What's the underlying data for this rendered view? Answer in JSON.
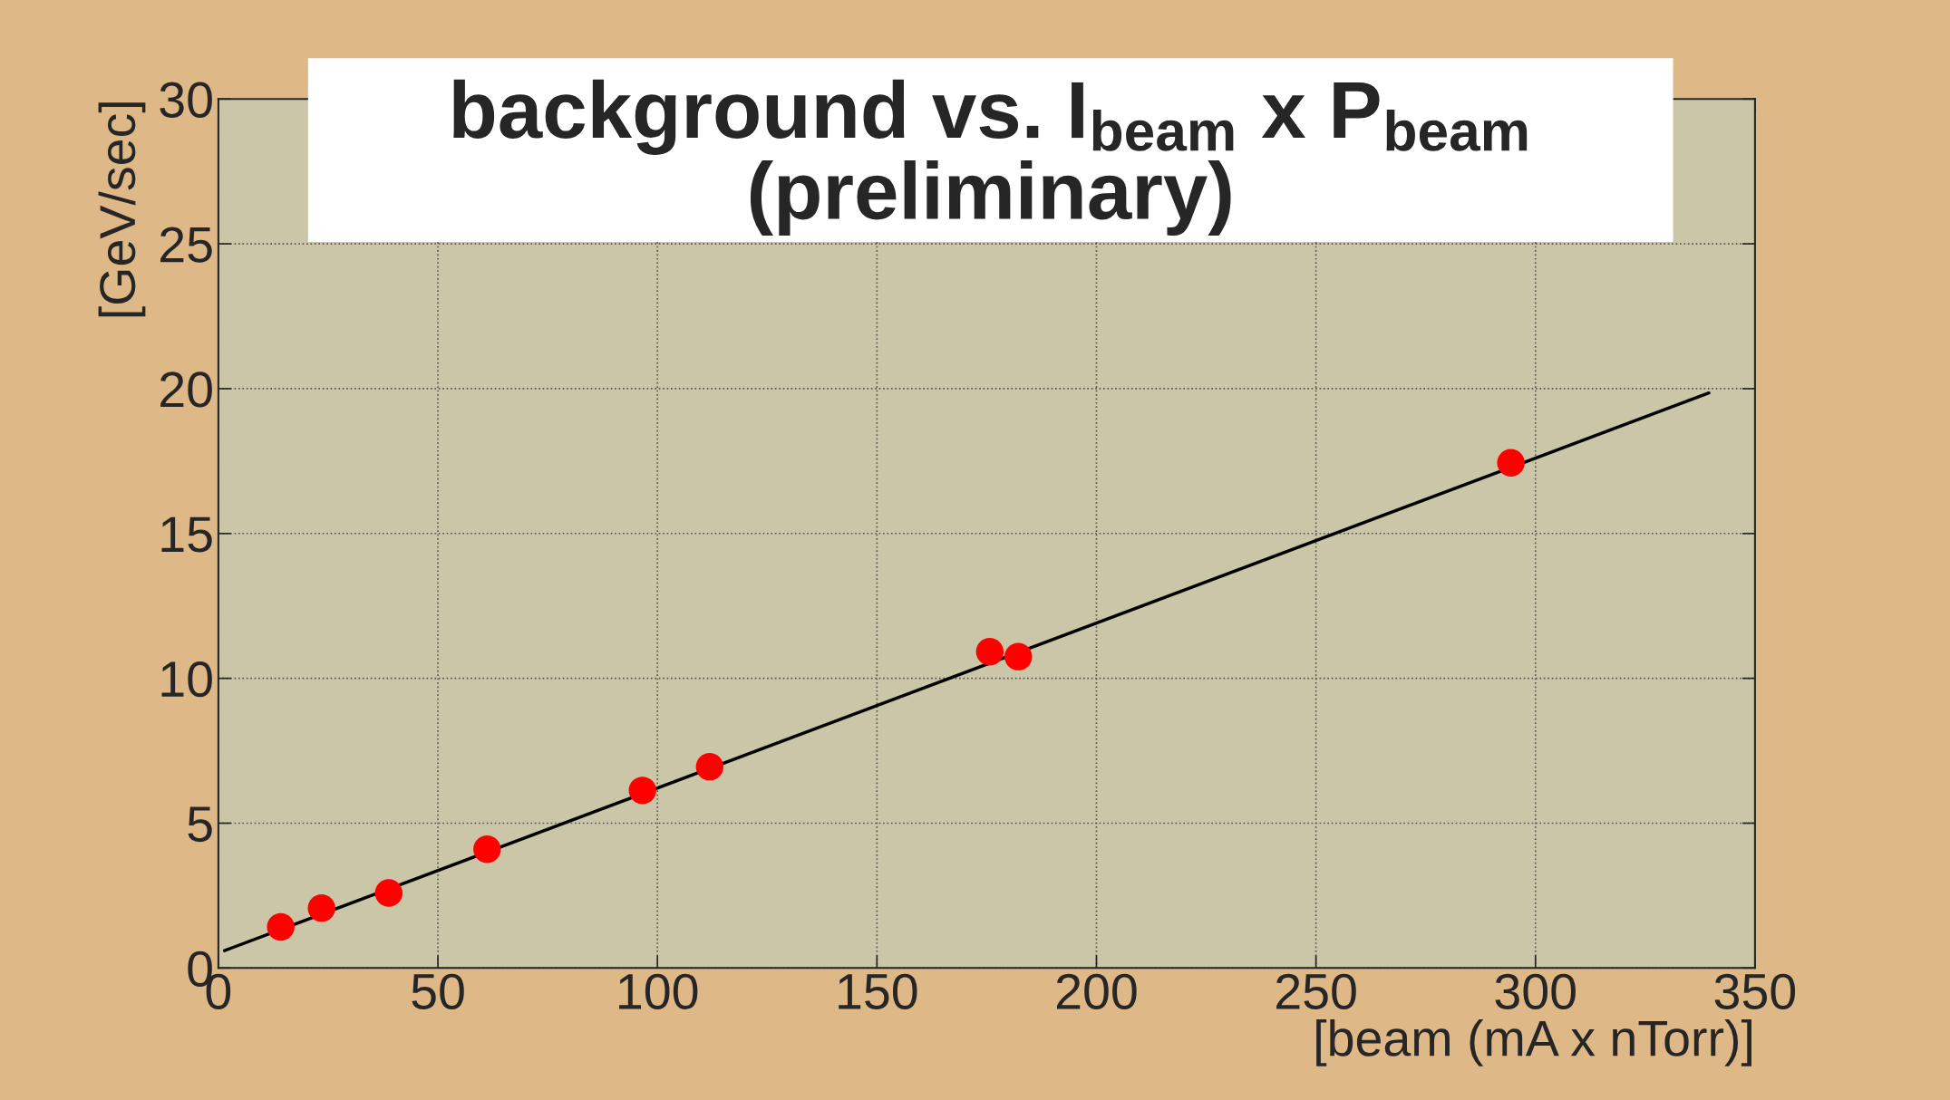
{
  "chart_data": {
    "type": "scatter",
    "title": "background vs. I$_{beam}$ x P$_{beam}$",
    "subtitle": "(preliminary)",
    "xlabel": "[beam (mA x nTorr)]",
    "ylabel": "[GeV/sec]",
    "xlim": [
      0,
      350
    ],
    "ylim": [
      0,
      30
    ],
    "xticks": [
      0,
      50,
      100,
      150,
      200,
      250,
      300,
      350
    ],
    "yticks": [
      0,
      5,
      10,
      15,
      20,
      25,
      30
    ],
    "grid": true,
    "marker": "circle",
    "series": [
      {
        "color": "#ff0000",
        "x": [
          14.2,
          23.5,
          38.8,
          61.2,
          96.6,
          111.9,
          175.7,
          182.2,
          294.4
        ],
        "values": [
          1.42,
          2.07,
          2.59,
          4.1,
          6.13,
          6.95,
          10.92,
          10.75,
          17.44
        ]
      },
      {
        "type": "line",
        "marker": "none",
        "color": "#000000",
        "x": [
          1.4,
          339.5
        ],
        "values": [
          0.6,
          19.85
        ]
      }
    ]
  }
}
